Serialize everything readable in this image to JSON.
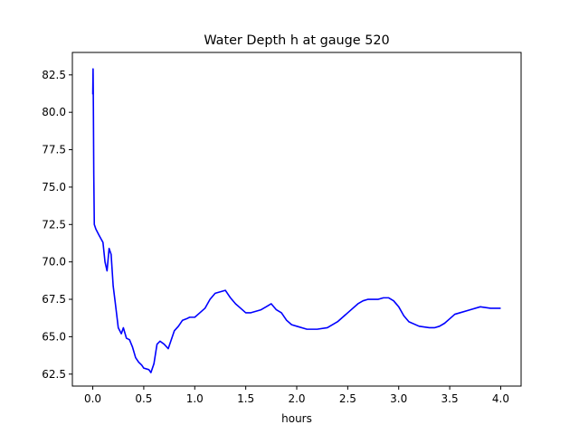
{
  "chart_data": {
    "type": "line",
    "title": "Water Depth h at gauge 520",
    "xlabel": "hours",
    "ylabel": "",
    "xlim": [
      -0.2,
      4.2
    ],
    "ylim": [
      61.7,
      84.0
    ],
    "x_ticks": [
      0.0,
      0.5,
      1.0,
      1.5,
      2.0,
      2.5,
      3.0,
      3.5,
      4.0
    ],
    "x_tick_labels": [
      "0.0",
      "0.5",
      "1.0",
      "1.5",
      "2.0",
      "2.5",
      "3.0",
      "3.5",
      "4.0"
    ],
    "y_ticks": [
      62.5,
      65.0,
      67.5,
      70.0,
      72.5,
      75.0,
      77.5,
      80.0,
      82.5
    ],
    "y_tick_labels": [
      "62.5",
      "65.0",
      "67.5",
      "70.0",
      "72.5",
      "75.0",
      "77.5",
      "80.0",
      "82.5"
    ],
    "grid": false,
    "legend": "none",
    "series": [
      {
        "color": "#0000ff",
        "x": [
          0.0,
          0.003,
          0.006,
          0.01,
          0.015,
          0.03,
          0.06,
          0.1,
          0.12,
          0.14,
          0.16,
          0.18,
          0.2,
          0.22,
          0.25,
          0.28,
          0.3,
          0.33,
          0.36,
          0.39,
          0.42,
          0.45,
          0.48,
          0.5,
          0.55,
          0.57,
          0.6,
          0.63,
          0.66,
          0.7,
          0.74,
          0.8,
          0.84,
          0.88,
          0.92,
          0.95,
          1.0,
          1.05,
          1.1,
          1.15,
          1.2,
          1.25,
          1.3,
          1.35,
          1.4,
          1.45,
          1.5,
          1.55,
          1.6,
          1.65,
          1.7,
          1.75,
          1.8,
          1.85,
          1.9,
          1.95,
          2.0,
          2.1,
          2.2,
          2.3,
          2.4,
          2.5,
          2.6,
          2.65,
          2.7,
          2.75,
          2.8,
          2.85,
          2.9,
          2.95,
          3.0,
          3.05,
          3.1,
          3.2,
          3.3,
          3.35,
          3.4,
          3.45,
          3.5,
          3.55,
          3.6,
          3.7,
          3.8,
          3.9,
          4.0
        ],
        "y": [
          81.2,
          82.9,
          80.4,
          75.8,
          72.5,
          72.2,
          71.8,
          71.3,
          70.0,
          69.4,
          70.9,
          70.5,
          68.4,
          67.3,
          65.6,
          65.2,
          65.6,
          64.9,
          64.8,
          64.3,
          63.6,
          63.3,
          63.1,
          62.9,
          62.8,
          62.6,
          63.2,
          64.5,
          64.7,
          64.5,
          64.2,
          65.4,
          65.7,
          66.1,
          66.2,
          66.3,
          66.3,
          66.6,
          66.9,
          67.5,
          67.9,
          68.0,
          68.1,
          67.6,
          67.2,
          66.9,
          66.6,
          66.6,
          66.7,
          66.8,
          67.0,
          67.2,
          66.8,
          66.6,
          66.1,
          65.8,
          65.7,
          65.5,
          65.5,
          65.6,
          66.0,
          66.6,
          67.2,
          67.4,
          67.5,
          67.5,
          67.5,
          67.6,
          67.6,
          67.4,
          67.0,
          66.4,
          66.0,
          65.7,
          65.6,
          65.6,
          65.7,
          65.9,
          66.2,
          66.5,
          66.6,
          66.8,
          67.0,
          66.9,
          66.9
        ]
      }
    ]
  }
}
